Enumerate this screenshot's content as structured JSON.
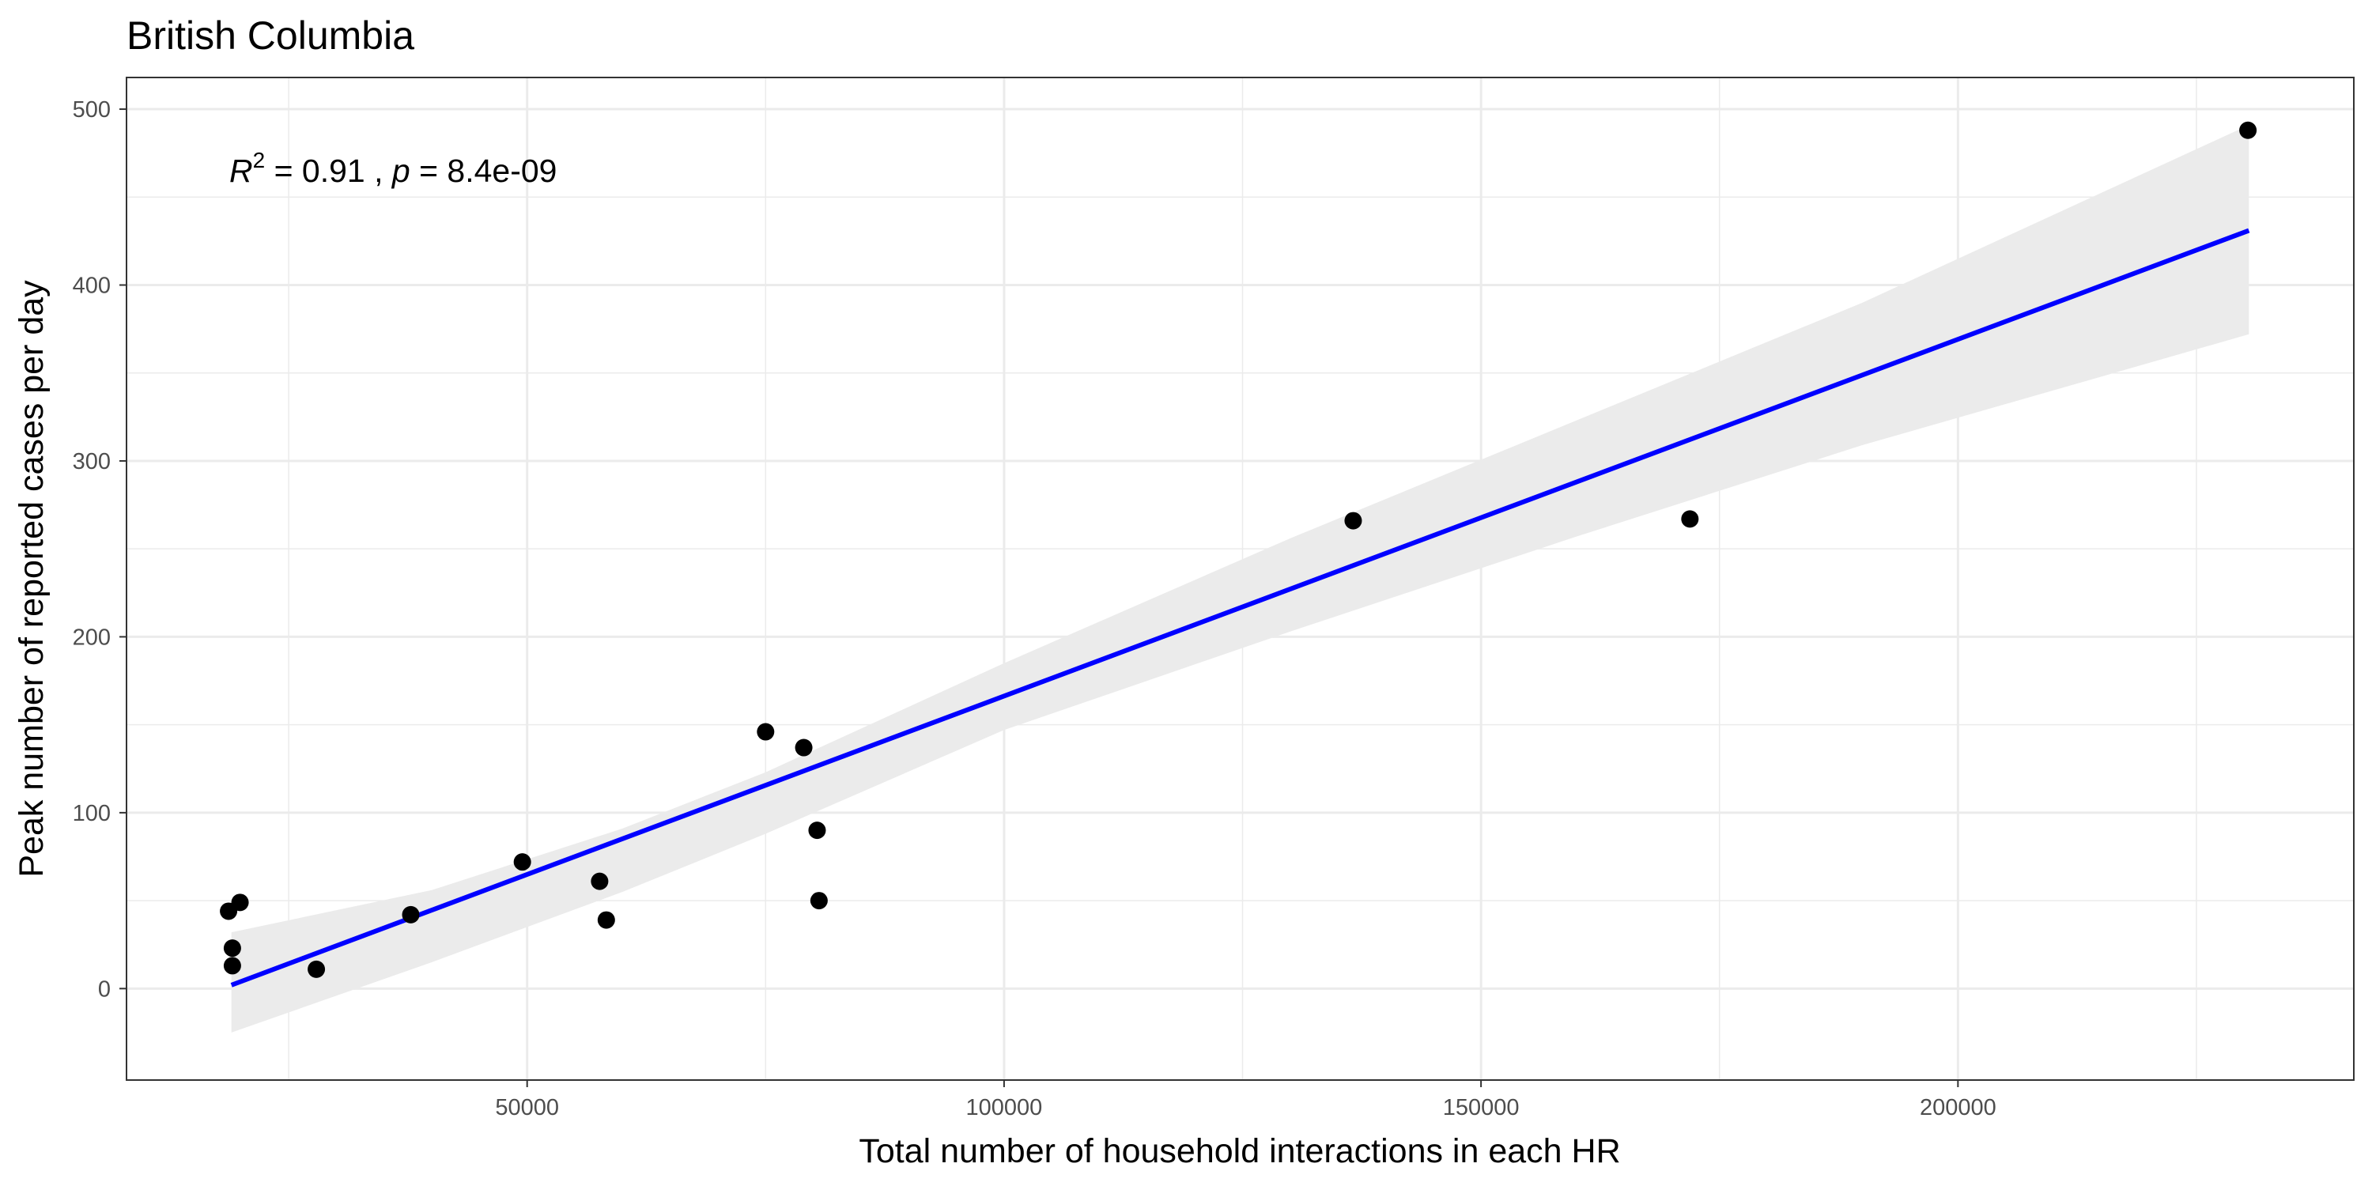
{
  "chart_data": {
    "type": "scatter",
    "title": "British Columbia",
    "xlabel": "Total number of household interactions in each HR",
    "ylabel": "Peak number of reported cases per day",
    "xlim": [
      8000,
      241500
    ],
    "ylim": [
      -52,
      518
    ],
    "x_ticks": [
      50000,
      100000,
      150000,
      200000
    ],
    "x_minor_ticks": [
      25000,
      75000,
      125000,
      175000,
      225000
    ],
    "y_ticks": [
      0,
      100,
      200,
      300,
      400,
      500
    ],
    "y_minor_ticks": [
      50,
      150,
      250,
      350,
      450
    ],
    "x_tick_labels": [
      "50000",
      "100000",
      "150000",
      "200000"
    ],
    "y_tick_labels": [
      "0",
      "100",
      "200",
      "300",
      "400",
      "500"
    ],
    "grid": true,
    "points": [
      {
        "x": 18700,
        "y": 44
      },
      {
        "x": 19900,
        "y": 49
      },
      {
        "x": 19100,
        "y": 23
      },
      {
        "x": 19100,
        "y": 13
      },
      {
        "x": 27900,
        "y": 11
      },
      {
        "x": 37800,
        "y": 42
      },
      {
        "x": 49500,
        "y": 72
      },
      {
        "x": 57600,
        "y": 61
      },
      {
        "x": 58300,
        "y": 39
      },
      {
        "x": 75000,
        "y": 146
      },
      {
        "x": 79000,
        "y": 137
      },
      {
        "x": 80400,
        "y": 90
      },
      {
        "x": 80600,
        "y": 50
      },
      {
        "x": 136600,
        "y": 266
      },
      {
        "x": 171900,
        "y": 267
      },
      {
        "x": 230400,
        "y": 488
      }
    ],
    "fit_line": {
      "x": [
        19000,
        230500
      ],
      "y": [
        2,
        431
      ]
    },
    "confidence_band": {
      "x": [
        19000,
        40000,
        60000,
        75000,
        100000,
        130000,
        160000,
        190000,
        230500
      ],
      "lower": [
        -25,
        15,
        55,
        88,
        147,
        203,
        257,
        309,
        372
      ],
      "upper": [
        32,
        56,
        91,
        123,
        185,
        256,
        323,
        390,
        491
      ]
    },
    "annotation": {
      "r_symbol": "R",
      "r_sup": "2",
      "r_value": " = 0.91 , ",
      "p_symbol": "p",
      "p_value": " = 8.4e-09"
    },
    "colors": {
      "points": "#000000",
      "fit_line": "#0000ff",
      "band": "#ebebeb",
      "grid": "#ebebeb",
      "panel_border": "#333333"
    }
  }
}
